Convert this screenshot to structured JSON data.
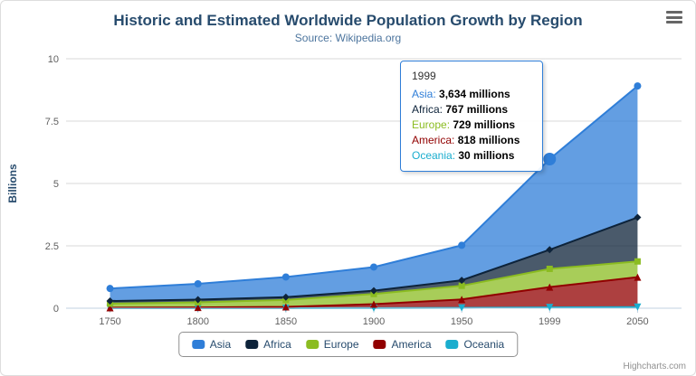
{
  "header": {
    "title": "Historic and Estimated Worldwide Population Growth by Region",
    "subtitle": "Source: Wikipedia.org"
  },
  "chart_data": {
    "type": "area",
    "stacking": "normal",
    "title": "Historic and Estimated Worldwide Population Growth by Region",
    "subtitle": "Source: Wikipedia.org",
    "xlabel": "",
    "ylabel": "Billions",
    "ylim": [
      0,
      10
    ],
    "yticks": [
      "0",
      "2.5",
      "5",
      "7.5",
      "10"
    ],
    "grid": true,
    "legend_position": "bottom",
    "unit_suffix": "millions",
    "categories": [
      "1750",
      "1800",
      "1850",
      "1900",
      "1950",
      "1999",
      "2050"
    ],
    "series": [
      {
        "name": "Asia",
        "color": "#2f7ed8",
        "marker": "circle",
        "values": [
          502,
          635,
          809,
          947,
          1402,
          3634,
          5268
        ]
      },
      {
        "name": "Africa",
        "color": "#0d233a",
        "marker": "diamond",
        "values": [
          106,
          107,
          111,
          133,
          221,
          767,
          1766
        ]
      },
      {
        "name": "Europe",
        "color": "#8bbc21",
        "marker": "square",
        "values": [
          163,
          203,
          276,
          408,
          547,
          729,
          628
        ]
      },
      {
        "name": "America",
        "color": "#910000",
        "marker": "triangle",
        "values": [
          18,
          31,
          54,
          156,
          339,
          818,
          1201
        ]
      },
      {
        "name": "Oceania",
        "color": "#1aadce",
        "marker": "triangle-down",
        "values": [
          2,
          2,
          2,
          6,
          13,
          30,
          46
        ]
      }
    ],
    "hover_point": {
      "series": "Asia",
      "category": "1999"
    }
  },
  "tooltip": {
    "header": "1999",
    "rows": [
      {
        "name": "Asia",
        "color": "#2f7ed8",
        "value": "3,634 millions"
      },
      {
        "name": "Africa",
        "color": "#0d233a",
        "value": "767 millions"
      },
      {
        "name": "Europe",
        "color": "#8bbc21",
        "value": "729 millions"
      },
      {
        "name": "America",
        "color": "#910000",
        "value": "818 millions"
      },
      {
        "name": "Oceania",
        "color": "#1aadce",
        "value": "30 millions"
      }
    ]
  },
  "legend": {
    "items": [
      "Asia",
      "Africa",
      "Europe",
      "America",
      "Oceania"
    ]
  },
  "credits": {
    "label": "Highcharts.com"
  },
  "colors": {
    "title_text": "#274b6d",
    "subtitle_text": "#4d759e",
    "axis_label_text": "#606060",
    "gridline": "#d8d8d8",
    "axis_line": "#c0d0e0",
    "legend_border": "#909090"
  }
}
